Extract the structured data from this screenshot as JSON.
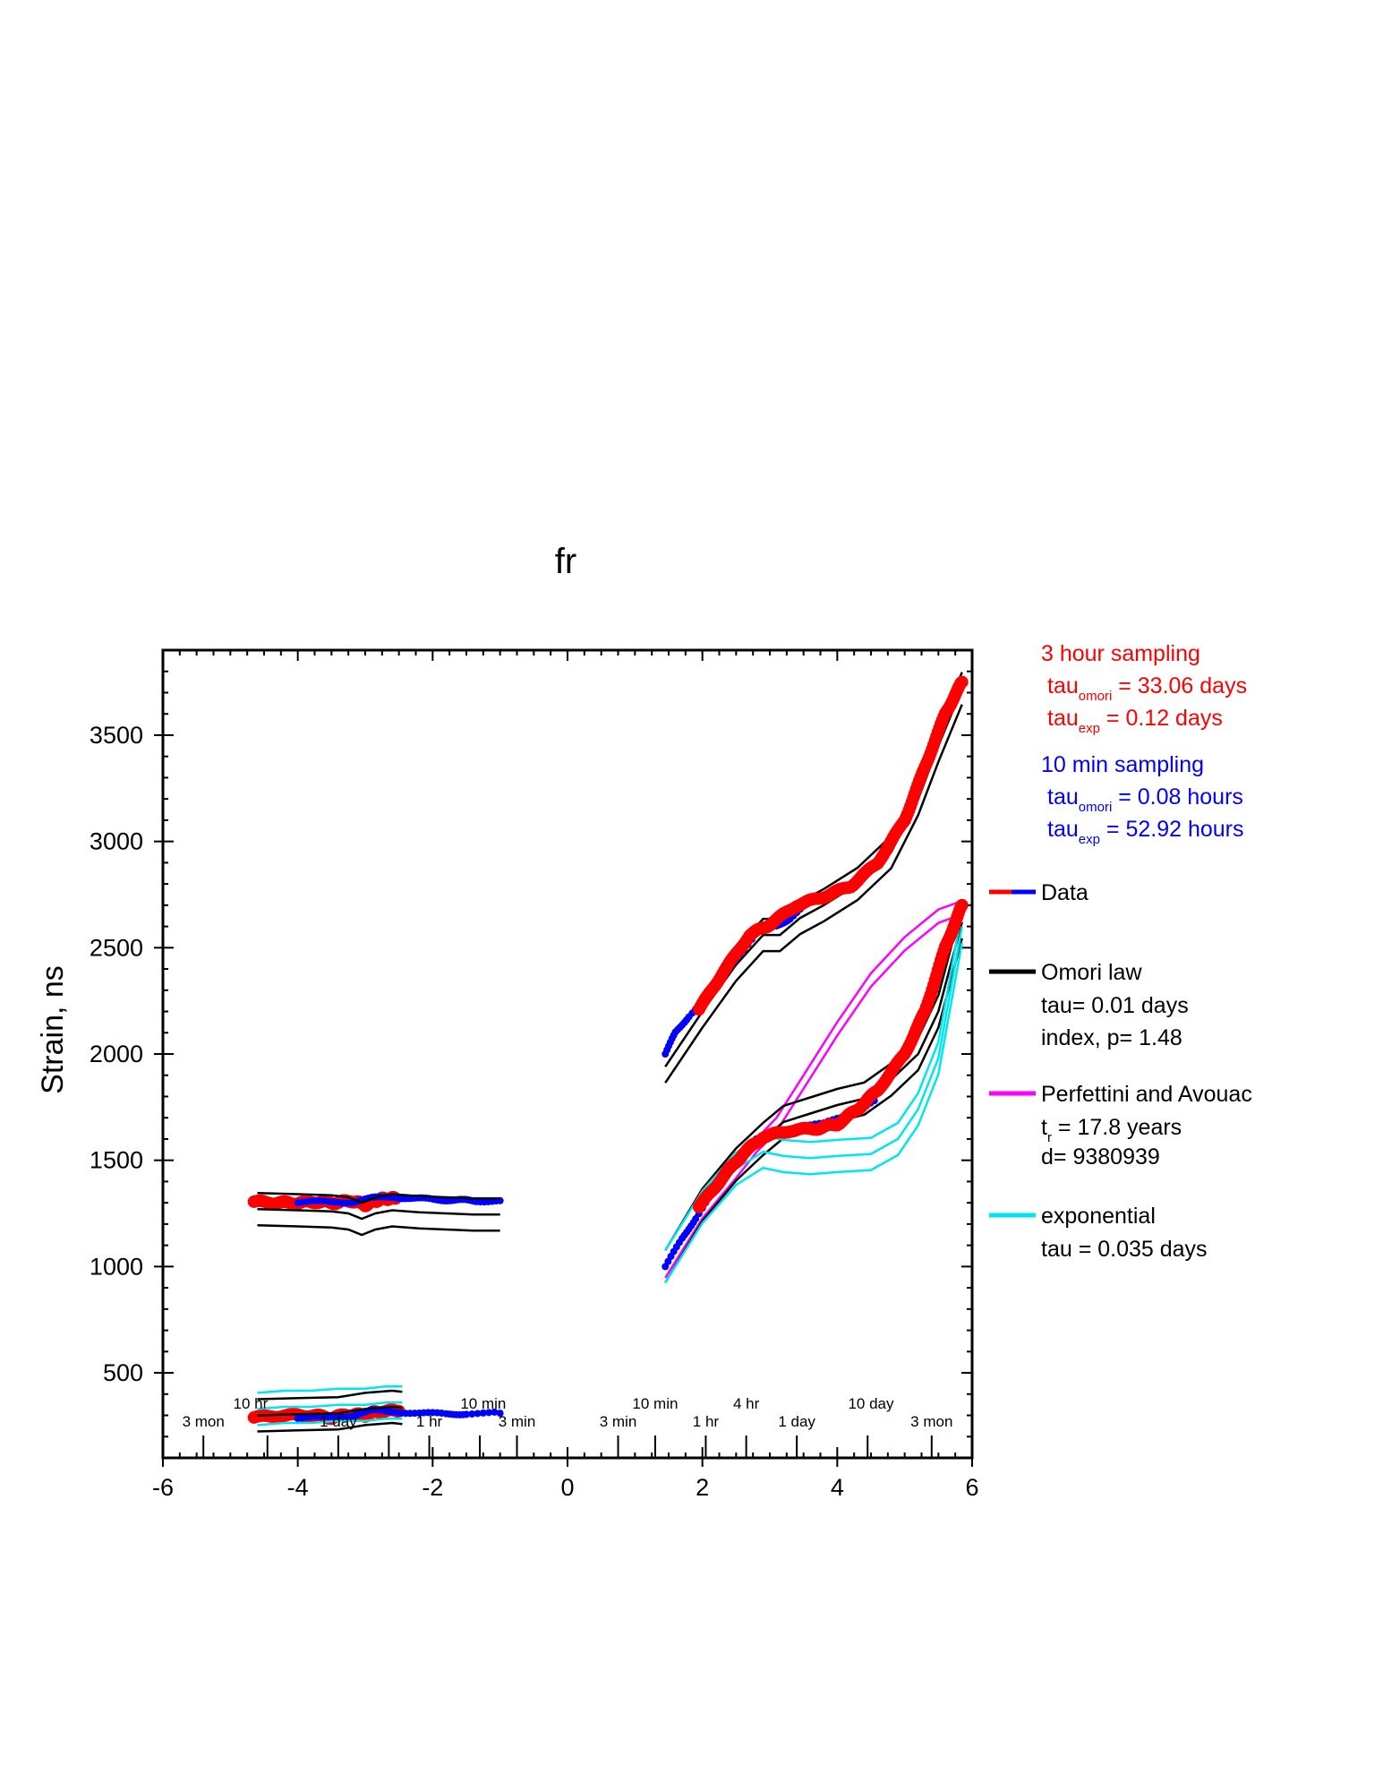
{
  "colors": {
    "red": "#ff0000",
    "blue": "#0000ff",
    "black": "#000000",
    "magenta": "#ff00ff",
    "cyan": "#00e5ee"
  },
  "chart_data": {
    "type": "scatter",
    "title": "fr",
    "xlabel": "",
    "ylabel": "Strain, ns",
    "xlim": [
      -6,
      6
    ],
    "ylim": [
      100,
      3900
    ],
    "xticks": [
      -6,
      -4,
      -2,
      0,
      2,
      4,
      6
    ],
    "yticks": [
      500,
      1000,
      1500,
      2000,
      2500,
      3000,
      3500
    ],
    "grid": false,
    "legend_position": "right",
    "duration_labels_row1": [
      {
        "x": -4.7,
        "text": "10 hr"
      },
      {
        "x": -1.25,
        "text": "10 min"
      },
      {
        "x": 1.3,
        "text": "10 min"
      },
      {
        "x": 2.65,
        "text": "4 hr"
      },
      {
        "x": 4.5,
        "text": "10 day"
      }
    ],
    "duration_labels_row2": [
      {
        "x": -5.4,
        "text": "3 mon"
      },
      {
        "x": -3.4,
        "text": "1 day"
      },
      {
        "x": -2.05,
        "text": "1 hr"
      },
      {
        "x": -0.75,
        "text": "3 min"
      },
      {
        "x": 0.75,
        "text": "3 min"
      },
      {
        "x": 2.05,
        "text": "1 hr"
      },
      {
        "x": 3.4,
        "text": "1 day"
      },
      {
        "x": 5.4,
        "text": "3 mon"
      }
    ],
    "time_ticks_x": [
      -5.4,
      -4.45,
      -3.4,
      -2.65,
      -2.05,
      -1.3,
      -0.75,
      0.75,
      1.3,
      2.05,
      2.65,
      3.4,
      4.45,
      5.4
    ],
    "annotations": {
      "red_block": [
        "3 hour sampling",
        "tau",
        "omori",
        " = 33.06 days",
        "tau",
        "exp",
        " = 0.12 days"
      ],
      "blue_block": [
        "10 min sampling",
        "tau",
        "omori",
        " = 0.08 hours",
        "tau",
        "exp",
        " = 52.92 hours"
      ]
    },
    "legend": [
      {
        "name": "Data"
      },
      {
        "name": "Omori law",
        "lines": [
          "tau= 0.01 days",
          "index, p= 1.48"
        ]
      },
      {
        "name": "Perfettini and Avouac",
        "line_r_a": "t",
        "line_r_b": "r",
        "line_r_c": " = 17.8 years",
        "line2": "d= 9380939"
      },
      {
        "name": "exponential",
        "lines": [
          "tau = 0.035 days"
        ]
      }
    ],
    "series": [
      {
        "role": "data-3hour",
        "color": "red",
        "points": [
          [
            -4.65,
            1305
          ],
          [
            -4.3,
            1300
          ],
          [
            -4.0,
            1300
          ],
          [
            -3.7,
            1305
          ],
          [
            -3.45,
            1300
          ],
          [
            -3.2,
            1310
          ],
          [
            -3.0,
            1290
          ],
          [
            -2.85,
            1310
          ],
          [
            -2.7,
            1320
          ],
          [
            -2.55,
            1320
          ]
        ]
      },
      {
        "role": "data-10min",
        "color": "blue",
        "points": [
          [
            -4.0,
            1300
          ],
          [
            -3.6,
            1305
          ],
          [
            -3.2,
            1305
          ],
          [
            -2.9,
            1320
          ],
          [
            -2.6,
            1330
          ],
          [
            -2.3,
            1320
          ],
          [
            -2.0,
            1315
          ],
          [
            -1.75,
            1315
          ],
          [
            -1.55,
            1310
          ],
          [
            -1.35,
            1310
          ],
          [
            -1.0,
            1310
          ]
        ]
      },
      {
        "role": "omori-fit",
        "color": "black",
        "points": [
          [
            -4.6,
            1270
          ],
          [
            -4.0,
            1265
          ],
          [
            -3.5,
            1260
          ],
          [
            -3.25,
            1250
          ],
          [
            -3.05,
            1225
          ],
          [
            -2.85,
            1250
          ],
          [
            -2.6,
            1265
          ],
          [
            -2.2,
            1255
          ],
          [
            -1.8,
            1250
          ],
          [
            -1.4,
            1245
          ],
          [
            -1.0,
            1245
          ]
        ]
      },
      {
        "role": "data-3hour",
        "color": "red",
        "points": [
          [
            -4.65,
            290
          ],
          [
            -4.2,
            300
          ],
          [
            -3.8,
            300
          ],
          [
            -3.5,
            290
          ],
          [
            -3.2,
            305
          ],
          [
            -3.0,
            300
          ],
          [
            -2.8,
            320
          ],
          [
            -2.5,
            320
          ]
        ]
      },
      {
        "role": "data-10min",
        "color": "blue",
        "points": [
          [
            -4.0,
            285
          ],
          [
            -3.6,
            290
          ],
          [
            -3.2,
            300
          ],
          [
            -2.9,
            320
          ],
          [
            -2.6,
            320
          ],
          [
            -2.2,
            310
          ],
          [
            -1.8,
            305
          ],
          [
            -1.5,
            310
          ],
          [
            -1.0,
            310
          ]
        ]
      },
      {
        "role": "exponential-fit",
        "color": "cyan",
        "points": [
          [
            -4.6,
            330
          ],
          [
            -4.2,
            340
          ],
          [
            -3.8,
            340
          ],
          [
            -3.4,
            350
          ],
          [
            -3.0,
            350
          ],
          [
            -2.7,
            360
          ],
          [
            -2.45,
            360
          ]
        ]
      },
      {
        "role": "omori-fit",
        "color": "black",
        "points": [
          [
            -4.6,
            300
          ],
          [
            -4.0,
            305
          ],
          [
            -3.4,
            310
          ],
          [
            -3.0,
            330
          ],
          [
            -2.6,
            340
          ],
          [
            -2.45,
            335
          ]
        ]
      },
      {
        "role": "omori-fit",
        "color": "black",
        "points": [
          [
            1.45,
            1940
          ],
          [
            2.0,
            2200
          ],
          [
            2.5,
            2420
          ],
          [
            2.9,
            2560
          ],
          [
            3.15,
            2560
          ],
          [
            3.45,
            2640
          ],
          [
            3.8,
            2700
          ],
          [
            4.3,
            2800
          ],
          [
            4.8,
            2950
          ],
          [
            5.2,
            3200
          ],
          [
            5.5,
            3450
          ],
          [
            5.85,
            3720
          ]
        ]
      },
      {
        "role": "data-10min",
        "color": "blue",
        "points": [
          [
            1.45,
            2000
          ],
          [
            1.6,
            2100
          ],
          [
            1.8,
            2180
          ],
          [
            2.1,
            2280
          ],
          [
            2.5,
            2450
          ],
          [
            2.85,
            2590
          ],
          [
            3.1,
            2600
          ],
          [
            3.3,
            2640
          ],
          [
            3.6,
            2720
          ],
          [
            4.0,
            2760
          ],
          [
            4.4,
            2840
          ]
        ]
      },
      {
        "role": "data-3hour",
        "color": "red",
        "points": [
          [
            1.95,
            2210
          ],
          [
            2.3,
            2380
          ],
          [
            2.7,
            2560
          ],
          [
            3.0,
            2610
          ],
          [
            3.4,
            2700
          ],
          [
            3.8,
            2740
          ],
          [
            4.2,
            2790
          ],
          [
            4.6,
            2900
          ],
          [
            5.0,
            3100
          ],
          [
            5.3,
            3350
          ],
          [
            5.6,
            3600
          ],
          [
            5.85,
            3750
          ]
        ]
      },
      {
        "role": "perfettini-fit",
        "color": "magenta",
        "points": [
          [
            1.45,
            1010
          ],
          [
            2.0,
            1290
          ],
          [
            2.5,
            1480
          ],
          [
            2.8,
            1600
          ],
          [
            3.1,
            1700
          ],
          [
            3.5,
            1900
          ],
          [
            4.0,
            2150
          ],
          [
            4.5,
            2380
          ],
          [
            5.0,
            2550
          ],
          [
            5.5,
            2680
          ],
          [
            5.85,
            2720
          ]
        ]
      },
      {
        "role": "omori-fit",
        "color": "black",
        "points": [
          [
            1.45,
            1000
          ],
          [
            2.0,
            1290
          ],
          [
            2.5,
            1480
          ],
          [
            2.9,
            1600
          ],
          [
            3.2,
            1680
          ],
          [
            3.6,
            1720
          ],
          [
            4.0,
            1760
          ],
          [
            4.4,
            1790
          ],
          [
            4.8,
            1880
          ],
          [
            5.2,
            2000
          ],
          [
            5.5,
            2200
          ],
          [
            5.85,
            2620
          ]
        ]
      },
      {
        "role": "exponential-fit",
        "color": "cyan",
        "points": [
          [
            1.45,
            1000
          ],
          [
            2.0,
            1280
          ],
          [
            2.5,
            1460
          ],
          [
            2.9,
            1540
          ],
          [
            3.2,
            1520
          ],
          [
            3.6,
            1510
          ],
          [
            4.0,
            1520
          ],
          [
            4.5,
            1530
          ],
          [
            4.9,
            1600
          ],
          [
            5.2,
            1740
          ],
          [
            5.5,
            1980
          ],
          [
            5.85,
            2600
          ]
        ]
      },
      {
        "role": "data-10min",
        "color": "blue",
        "points": [
          [
            1.45,
            1000
          ],
          [
            1.7,
            1130
          ],
          [
            1.9,
            1230
          ],
          [
            2.2,
            1370
          ],
          [
            2.5,
            1480
          ],
          [
            2.8,
            1600
          ],
          [
            3.05,
            1610
          ],
          [
            3.4,
            1660
          ],
          [
            3.8,
            1670
          ],
          [
            4.2,
            1720
          ],
          [
            4.55,
            1780
          ]
        ]
      },
      {
        "role": "data-3hour",
        "color": "red",
        "points": [
          [
            1.95,
            1280
          ],
          [
            2.3,
            1420
          ],
          [
            2.6,
            1530
          ],
          [
            2.9,
            1610
          ],
          [
            3.3,
            1640
          ],
          [
            3.7,
            1650
          ],
          [
            4.0,
            1670
          ],
          [
            4.3,
            1740
          ],
          [
            4.6,
            1830
          ],
          [
            5.0,
            2000
          ],
          [
            5.3,
            2200
          ],
          [
            5.6,
            2500
          ],
          [
            5.85,
            2700
          ]
        ]
      }
    ]
  }
}
